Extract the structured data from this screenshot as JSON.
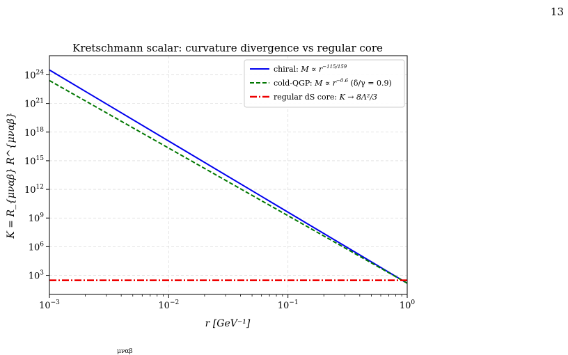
{
  "page": {
    "number": "13",
    "bottom_fragment": "μναβ"
  },
  "chart_data": {
    "type": "line",
    "title": "Kretschmann scalar: curvature divergence vs regular core",
    "xlabel": "r  [GeV⁻¹]",
    "ylabel": "K = R_{μναβ} R^{μναβ}",
    "x_scale": "log",
    "y_scale": "log",
    "xlim": [
      0.001,
      1
    ],
    "ylim": [
      10,
      1e+26
    ],
    "grid": true,
    "x_ticks": [
      {
        "value": 0.001,
        "base": "10",
        "exp": "−3"
      },
      {
        "value": 0.01,
        "base": "10",
        "exp": "−2"
      },
      {
        "value": 0.1,
        "base": "10",
        "exp": "−1"
      },
      {
        "value": 1,
        "base": "10",
        "exp": "0"
      }
    ],
    "y_ticks": [
      {
        "value": 1000.0,
        "base": "10",
        "exp": "3"
      },
      {
        "value": 1000000.0,
        "base": "10",
        "exp": "6"
      },
      {
        "value": 1000000000.0,
        "base": "10",
        "exp": "9"
      },
      {
        "value": 1000000000000.0,
        "base": "10",
        "exp": "12"
      },
      {
        "value": 1000000000000000.0,
        "base": "10",
        "exp": "15"
      },
      {
        "value": 1e+18,
        "base": "10",
        "exp": "18"
      },
      {
        "value": 1e+21,
        "base": "10",
        "exp": "21"
      },
      {
        "value": 1e+24,
        "base": "10",
        "exp": "24"
      }
    ],
    "legend_position": "top-right",
    "series": [
      {
        "name": "chiral: M ∝ r^{−115/159}",
        "label_text": "chiral: ",
        "label_math": "M ∝ r",
        "label_exp": "−115/159",
        "label_suffix": "",
        "color": "#0000ee",
        "style": "solid",
        "x": [
          0.001,
          1
        ],
        "y": [
          3.2e+24,
          150
        ]
      },
      {
        "name": "cold-QGP: M ∝ r^{−0.6} (δ/γ = 0.9)",
        "label_text": "cold-QGP: ",
        "label_math": "M ∝ r",
        "label_exp": "−0.6",
        "label_suffix": " (δ/γ = 0.9)",
        "color": "#007700",
        "style": "dashed",
        "x": [
          0.001,
          1
        ],
        "y": [
          2.5e+23,
          150
        ]
      },
      {
        "name": "regular dS core: K → 8Λ²/3",
        "label_text": "regular dS core: ",
        "label_math": "K → 8Λ²/3",
        "label_exp": "",
        "label_suffix": "",
        "color": "#ee0000",
        "style": "dashdot",
        "x": [
          0.001,
          1
        ],
        "y": [
          300,
          300
        ]
      }
    ]
  }
}
